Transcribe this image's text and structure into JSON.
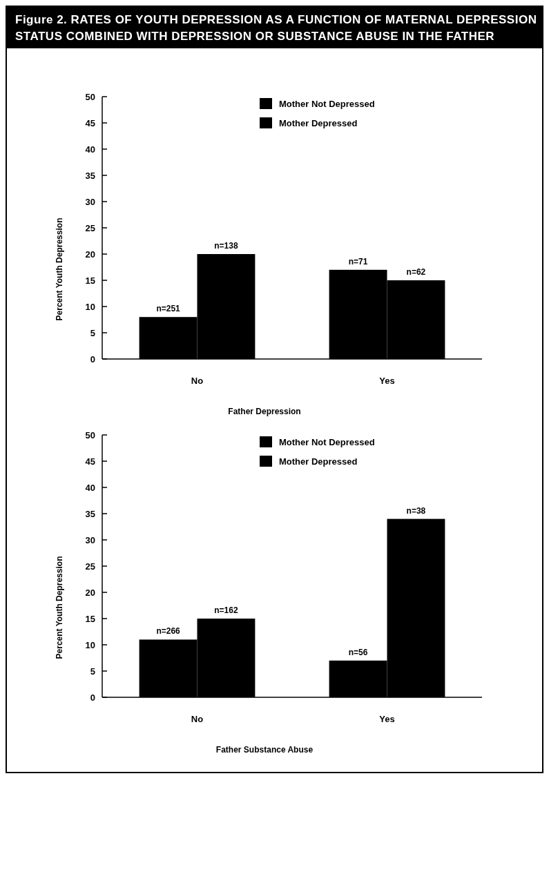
{
  "chart_data": [
    {
      "type": "bar",
      "title": "Figure 2. RATES OF YOUTH DEPRESSION AS A FUNCTION OF MATERNAL DEPRESSION STATUS COMBINED WITH DEPRESSION OR SUBSTANCE ABUSE IN THE FATHER",
      "categories": [
        "No",
        "Yes"
      ],
      "xlabel": "Father Depression",
      "ylabel": "Percent Youth Depression",
      "ylim": [
        0,
        50
      ],
      "yticks": [
        0,
        5,
        10,
        15,
        20,
        25,
        30,
        35,
        40,
        45,
        50
      ],
      "grid": false,
      "legend": "top right",
      "series": [
        {
          "name": "Mother Not Depressed",
          "color": "#000000",
          "values": [
            8,
            17
          ]
        },
        {
          "name": "Mother Depressed",
          "color": "#000000",
          "values": [
            20,
            15
          ]
        }
      ],
      "annotations": [
        {
          "text": "n=251",
          "x": "No",
          "y": 8
        },
        {
          "text": "n=138",
          "x": "No",
          "y": 20
        },
        {
          "text": "n=71",
          "x": "Yes",
          "y": 17
        },
        {
          "text": "n=62",
          "x": "Yes",
          "y": 15
        }
      ]
    },
    {
      "type": "bar",
      "categories": [
        "No",
        "Yes"
      ],
      "xlabel": "Father Substance Abuse",
      "ylabel": "Percent Youth Depression",
      "ylim": [
        0,
        50
      ],
      "yticks": [
        0,
        5,
        10,
        15,
        20,
        25,
        30,
        35,
        40,
        45,
        50
      ],
      "grid": false,
      "legend": "top right",
      "series": [
        {
          "name": "Mother Not Depressed",
          "color": "#000000",
          "values": [
            11,
            7
          ]
        },
        {
          "name": "Mother Depressed",
          "color": "#000000",
          "values": [
            15,
            34
          ]
        }
      ],
      "annotations": [
        {
          "text": "n=266",
          "x": "No",
          "y": 11
        },
        {
          "text": "n=162",
          "x": "No",
          "y": 15
        },
        {
          "text": "n=56",
          "x": "Yes",
          "y": 7
        },
        {
          "text": "n=38",
          "x": "Yes",
          "y": 34
        }
      ]
    }
  ]
}
